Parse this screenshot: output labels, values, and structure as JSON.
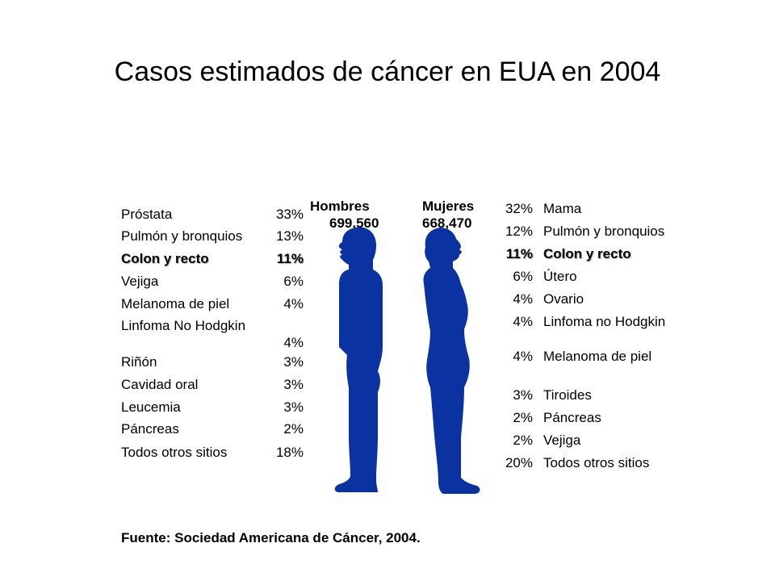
{
  "title": "Casos estimados de cáncer en EUA en 2004",
  "men": {
    "header_label": "Hombres",
    "header_total": "699,560",
    "rows": [
      {
        "label": "Próstata",
        "pct": "33%"
      },
      {
        "label": "Pulmón y bronquios",
        "pct": "13%"
      },
      {
        "label": "Colon y recto",
        "pct": "11%"
      },
      {
        "label": "Vejiga",
        "pct": "6%"
      },
      {
        "label": "Melanoma de piel",
        "pct": "4%"
      },
      {
        "label": "Linfoma No Hodgkin",
        "pct": "4%"
      },
      {
        "label": "Riñón",
        "pct": "3%"
      },
      {
        "label": "Cavidad oral",
        "pct": "3%"
      },
      {
        "label": "Leucemia",
        "pct": "3%"
      },
      {
        "label": "Páncreas",
        "pct": "2%"
      },
      {
        "label": "Todos otros sitios",
        "pct": "18%"
      }
    ]
  },
  "women": {
    "header_label": "Mujeres",
    "header_total": "668,470",
    "rows": [
      {
        "label": "Mama",
        "pct": "32%"
      },
      {
        "label": "Pulmón y bronquios",
        "pct": "12%"
      },
      {
        "label": "Colon y recto",
        "pct": "11%"
      },
      {
        "label": "Útero",
        "pct": "6%"
      },
      {
        "label": "Ovario",
        "pct": "4%"
      },
      {
        "label": "Linfoma no Hodgkin",
        "pct": "4%"
      },
      {
        "label": "Melanoma de piel",
        "pct": "4%"
      },
      {
        "label": "Tiroides",
        "pct": "3%"
      },
      {
        "label": "Páncreas",
        "pct": "2%"
      },
      {
        "label": "Vejiga",
        "pct": "2%"
      },
      {
        "label": "Todos otros sitios",
        "pct": "20%"
      }
    ]
  },
  "colors": {
    "silhouette": "#0a32a0"
  },
  "source": "Fuente: Sociedad Americana de Cáncer, 2004."
}
